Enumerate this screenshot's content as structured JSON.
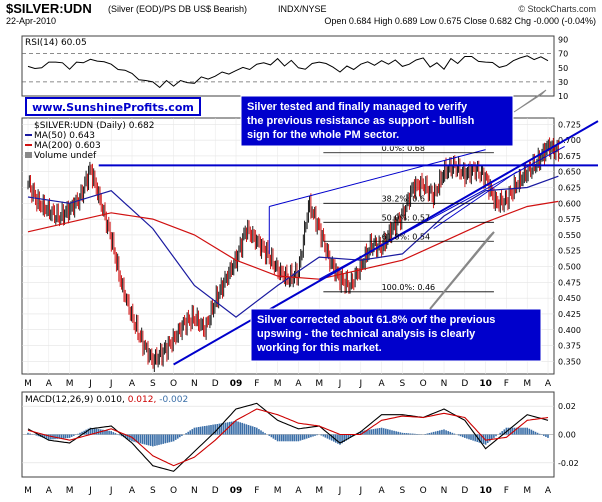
{
  "header": {
    "symbol": "$SILVER:UDN",
    "description": "(Silver (EOD)/PS DB US$ Bearish)",
    "exchange": "INDX/NYSE",
    "date": "22-Apr-2010",
    "quote": "Open 0.684 High 0.689 Low 0.675 Close 0.682 Chg -0.000 (-0.04%)",
    "watermark": "© StockCharts.com"
  },
  "colors": {
    "price_up": "#000000",
    "price_down": "#cc0000",
    "ma50": "#1a1aa0",
    "ma200": "#d01010",
    "trendline": "#0000cc",
    "annotation_border": "#0000cc",
    "annotation_text": "#ffffff",
    "annotation_bg": "#0000cc",
    "macd": "#000000",
    "signal": "#cc0000",
    "histogram": "#3b6fa8",
    "panel_border": "#404040"
  },
  "chart_data": [
    {
      "type": "line",
      "panel": "rsi",
      "label": "RSI(14) 60.05",
      "ylim": [
        10,
        95
      ],
      "yticks": [
        10,
        30,
        50,
        70,
        90
      ],
      "reference_lines": [
        30,
        70
      ],
      "series": [
        {
          "name": "RSI(14)",
          "x": [
            0,
            1,
            2,
            3,
            4,
            5,
            6,
            7,
            8,
            9,
            10,
            11,
            12,
            13,
            14,
            15,
            16,
            17,
            18,
            19,
            20,
            21,
            22,
            23,
            24,
            25
          ],
          "values": [
            52,
            58,
            48,
            62,
            55,
            42,
            30,
            24,
            28,
            38,
            46,
            55,
            63,
            50,
            58,
            44,
            55,
            60,
            52,
            64,
            48,
            66,
            58,
            53,
            67,
            60
          ]
        }
      ]
    },
    {
      "type": "line",
      "panel": "price",
      "legend": [
        "$SILVER:UDN (Daily) 0.682",
        "MA(50) 0.643",
        "MA(200) 0.603",
        "Volume undef"
      ],
      "ylim": [
        0.33,
        0.735
      ],
      "yticks": [
        0.35,
        0.375,
        0.4,
        0.425,
        0.45,
        0.475,
        0.5,
        0.525,
        0.55,
        0.575,
        0.6,
        0.625,
        0.65,
        0.675,
        0.7,
        0.725
      ],
      "x_labels": [
        "M",
        "A",
        "M",
        "J",
        "J",
        "A",
        "S",
        "O",
        "N",
        "D",
        "09",
        "F",
        "M",
        "A",
        "M",
        "J",
        "J",
        "A",
        "S",
        "O",
        "N",
        "D",
        "10",
        "F",
        "M",
        "A"
      ],
      "series": [
        {
          "name": "$SILVER:UDN",
          "x": [
            0,
            0.5,
            1,
            1.5,
            2,
            2.5,
            3,
            3.5,
            4,
            4.5,
            5,
            5.5,
            6,
            6.5,
            7,
            7.5,
            8,
            8.5,
            9,
            9.5,
            10,
            10.5,
            11,
            11.5,
            12,
            12.5,
            13,
            13.5,
            14,
            14.5,
            15,
            15.5,
            16,
            16.5,
            17,
            17.5,
            18,
            18.5,
            19,
            19.5,
            20,
            20.5,
            21,
            21.5,
            22,
            22.5,
            23,
            23.5,
            24,
            24.5,
            25,
            25.5
          ],
          "values": [
            0.632,
            0.6,
            0.588,
            0.578,
            0.59,
            0.608,
            0.655,
            0.6,
            0.545,
            0.47,
            0.42,
            0.38,
            0.35,
            0.365,
            0.385,
            0.41,
            0.42,
            0.4,
            0.445,
            0.48,
            0.51,
            0.56,
            0.54,
            0.52,
            0.495,
            0.48,
            0.49,
            0.6,
            0.56,
            0.51,
            0.48,
            0.47,
            0.5,
            0.535,
            0.53,
            0.56,
            0.58,
            0.625,
            0.63,
            0.61,
            0.65,
            0.66,
            0.645,
            0.655,
            0.64,
            0.6,
            0.605,
            0.63,
            0.65,
            0.665,
            0.69,
            0.682
          ]
        },
        {
          "name": "MA(50)",
          "x": [
            0,
            2,
            4,
            6,
            8,
            10,
            12,
            14,
            16,
            18,
            20,
            22,
            24,
            25.5
          ],
          "values": [
            0.61,
            0.6,
            0.62,
            0.56,
            0.47,
            0.42,
            0.47,
            0.515,
            0.51,
            0.52,
            0.58,
            0.62,
            0.625,
            0.643
          ]
        },
        {
          "name": "MA(200)",
          "x": [
            0,
            2,
            4,
            6,
            8,
            10,
            12,
            14,
            16,
            18,
            20,
            22,
            24,
            25.5
          ],
          "values": [
            0.555,
            0.57,
            0.585,
            0.575,
            0.55,
            0.51,
            0.485,
            0.48,
            0.495,
            0.51,
            0.54,
            0.57,
            0.595,
            0.603
          ]
        }
      ],
      "annotations": [
        {
          "text": "www.SunshineProfits.com"
        },
        {
          "text": "Silver tested and finally managed to verify the previous resistance as support - bullish sign for the whole PM sector."
        },
        {
          "text": "Silver corrected about 61.8% ovf the previous upswing - the technical analysis is clearly working for this market."
        }
      ],
      "fibonacci": [
        {
          "label": "0.0%: 0.68",
          "value": 0.68
        },
        {
          "label": "38.2%: 0.6",
          "value": 0.6
        },
        {
          "label": "50.0%: 0.57",
          "value": 0.57
        },
        {
          "label": "61.8%: 0.54",
          "value": 0.54
        },
        {
          "label": "100.0%: 0.46",
          "value": 0.46
        }
      ]
    },
    {
      "type": "line",
      "panel": "macd",
      "label": "MACD(12,26,9)",
      "values_label": [
        "0.010",
        "0.012",
        "-0.002"
      ],
      "ylim": [
        -0.03,
        0.03
      ],
      "yticks": [
        -0.02,
        0.0,
        0.02
      ],
      "x_labels": [
        "M",
        "A",
        "M",
        "J",
        "J",
        "A",
        "S",
        "O",
        "N",
        "D",
        "09",
        "F",
        "M",
        "A",
        "M",
        "J",
        "J",
        "A",
        "S",
        "O",
        "N",
        "D",
        "10",
        "F",
        "M",
        "A"
      ],
      "series": [
        {
          "name": "MACD",
          "x": [
            0,
            1,
            2,
            3,
            4,
            5,
            6,
            7,
            8,
            9,
            10,
            11,
            12,
            13,
            14,
            15,
            16,
            17,
            18,
            19,
            20,
            21,
            22,
            23,
            24,
            25
          ],
          "values": [
            0.004,
            -0.004,
            -0.006,
            0.004,
            0.006,
            -0.006,
            -0.022,
            -0.026,
            -0.012,
            0.002,
            0.018,
            0.022,
            0.01,
            0.004,
            0.006,
            -0.006,
            0.002,
            0.014,
            0.014,
            0.012,
            0.018,
            0.01,
            -0.01,
            0.002,
            0.014,
            0.01
          ]
        },
        {
          "name": "Signal",
          "x": [
            0,
            1,
            2,
            3,
            4,
            5,
            6,
            7,
            8,
            9,
            10,
            11,
            12,
            13,
            14,
            15,
            16,
            17,
            18,
            19,
            20,
            21,
            22,
            23,
            24,
            25
          ],
          "values": [
            0.003,
            -0.001,
            -0.004,
            0.0,
            0.004,
            -0.002,
            -0.015,
            -0.022,
            -0.016,
            -0.004,
            0.01,
            0.018,
            0.014,
            0.008,
            0.006,
            0.0,
            0.0,
            0.01,
            0.013,
            0.012,
            0.015,
            0.012,
            -0.004,
            -0.002,
            0.01,
            0.012
          ]
        }
      ]
    }
  ]
}
